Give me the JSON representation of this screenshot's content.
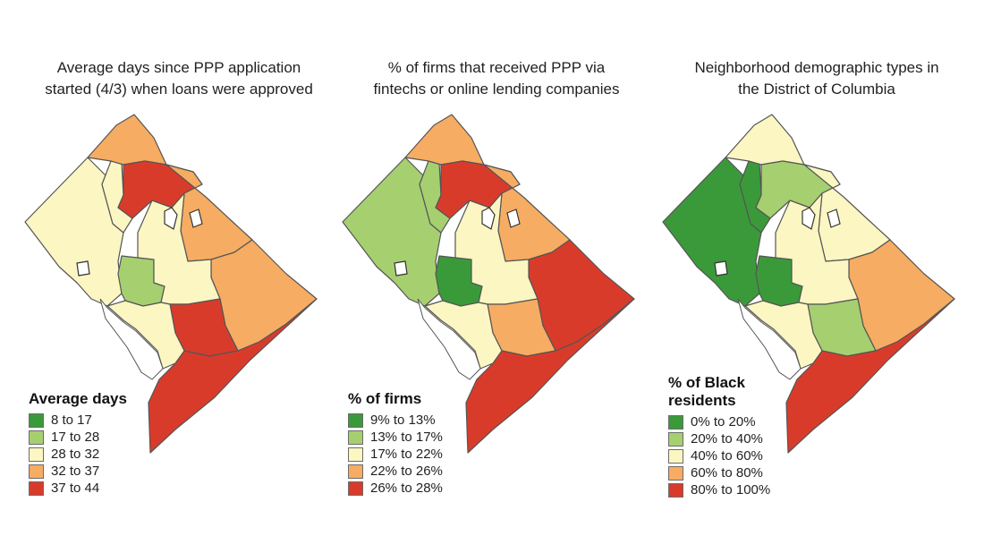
{
  "colors": {
    "c1": "#3a9a3a",
    "c2": "#a6cf70",
    "c3": "#fbf6c2",
    "c4": "#f6ac62",
    "c5": "#d93b2b",
    "border": "#555555"
  },
  "panels": [
    {
      "title": "Average days since PPP application\nstarted (4/3) when loans were approved",
      "legend_title": "Average days",
      "legend": [
        {
          "label": "8 to 17",
          "color": "#3a9a3a"
        },
        {
          "label": "17 to 28",
          "color": "#a6cf70"
        },
        {
          "label": "28 to 32",
          "color": "#fbf6c2"
        },
        {
          "label": "32 to 37",
          "color": "#f6ac62"
        },
        {
          "label": "37 to 44",
          "color": "#d93b2b"
        }
      ],
      "regions": {
        "nwwest": "c3",
        "nwcore": "c3",
        "north": "c4",
        "ncentral": "c5",
        "ne": "c4",
        "east": "c4",
        "downtown": "c2",
        "central": "c3",
        "ecap": "c5",
        "se": "c5",
        "sw": "c3"
      }
    },
    {
      "title": "% of firms that received PPP via\nfintechs or online lending companies",
      "legend_title": "% of firms",
      "legend": [
        {
          "label": "9% to 13%",
          "color": "#3a9a3a"
        },
        {
          "label": "13% to 17%",
          "color": "#a6cf70"
        },
        {
          "label": "17% to 22%",
          "color": "#fbf6c2"
        },
        {
          "label": "22% to 26%",
          "color": "#f6ac62"
        },
        {
          "label": "26% to 28%",
          "color": "#d93b2b"
        }
      ],
      "regions": {
        "nwwest": "c2",
        "nwcore": "c2",
        "north": "c4",
        "ncentral": "c5",
        "ne": "c4",
        "east": "c5",
        "downtown": "c1",
        "central": "c3",
        "ecap": "c4",
        "se": "c5",
        "sw": "c3"
      }
    },
    {
      "title": "Neighborhood demographic types in\nthe District of Columbia",
      "legend_title": "% of Black\nresidents",
      "legend": [
        {
          "label": "0% to 20%",
          "color": "#3a9a3a"
        },
        {
          "label": "20% to 40%",
          "color": "#a6cf70"
        },
        {
          "label": "40% to 60%",
          "color": "#fbf6c2"
        },
        {
          "label": "60% to 80%",
          "color": "#f6ac62"
        },
        {
          "label": "80% to 100%",
          "color": "#d93b2b"
        }
      ],
      "regions": {
        "nwwest": "c1",
        "nwcore": "c1",
        "north": "c3",
        "ncentral": "c2",
        "ne": "c3",
        "east": "c4",
        "downtown": "c1",
        "central": "c3",
        "ecap": "c2",
        "se": "c5",
        "sw": "c3"
      }
    }
  ]
}
